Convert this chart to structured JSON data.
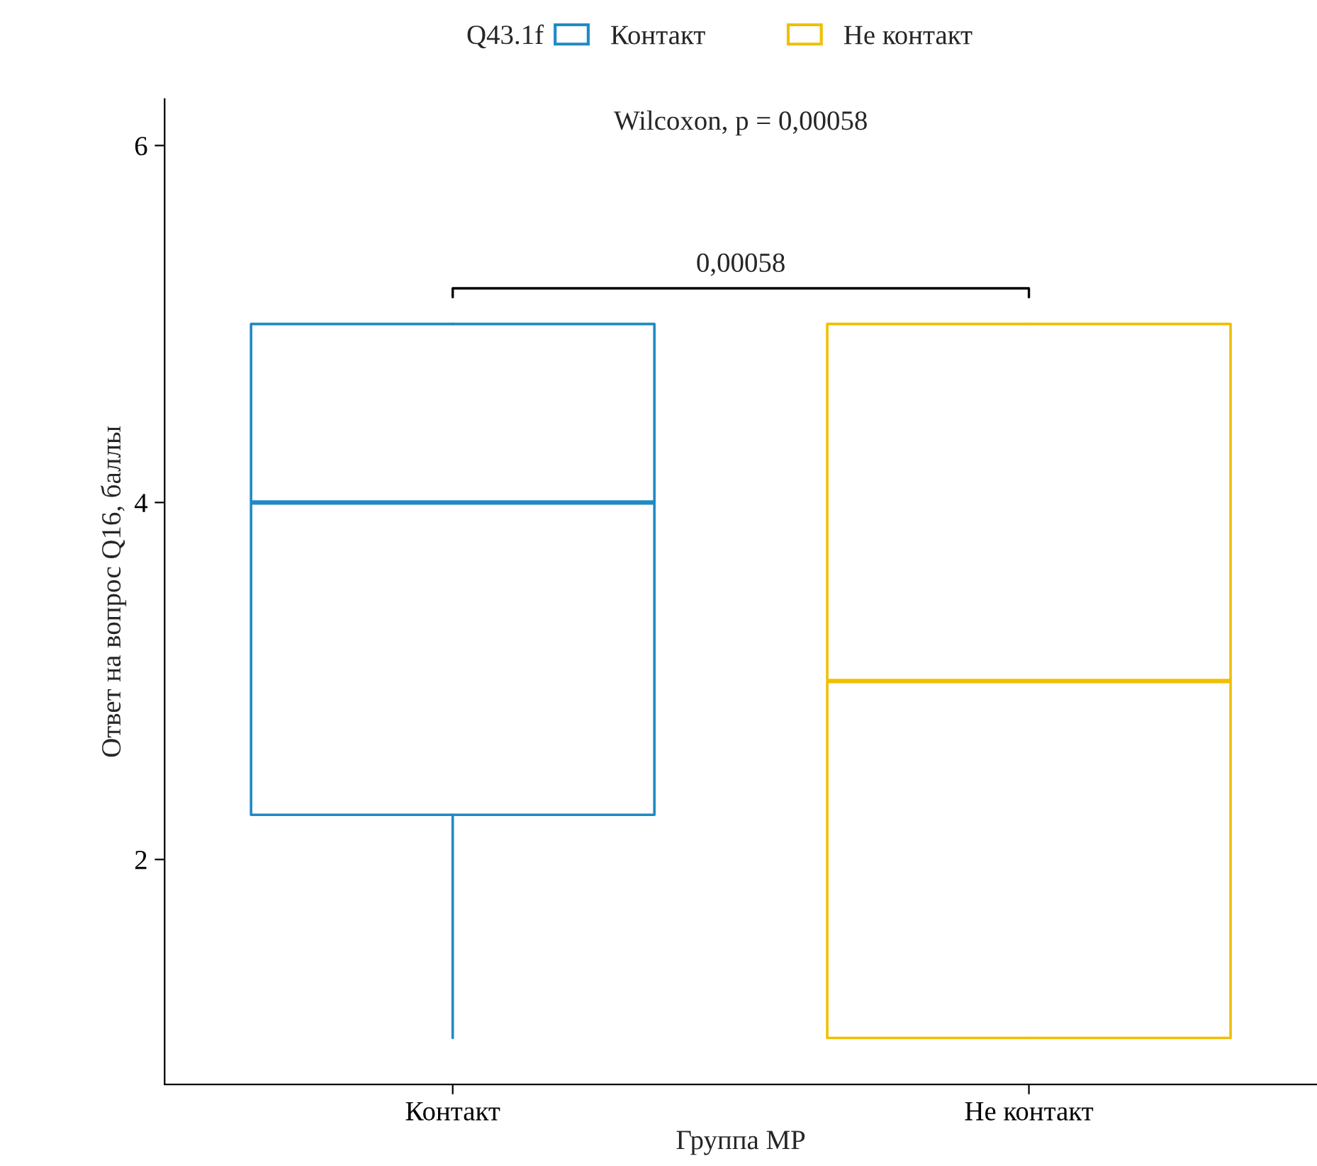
{
  "chart_data": {
    "type": "box",
    "title": "Wilcoxon, p = 0,00058",
    "xlabel": "Группа МР",
    "ylabel": "Ответ на вопрос Q16, баллы",
    "legend_title": "Q43.1f",
    "legend": "top",
    "grid": false,
    "categories": [
      "Контакт",
      "Не контакт"
    ],
    "series": [
      {
        "name": "Контакт",
        "color": "#1f8ac4",
        "boxes": [
          {
            "low": 1,
            "q1": 2.25,
            "median": 4,
            "q3": 5,
            "high": 5
          },
          null
        ]
      },
      {
        "name": "Не контакт",
        "color": "#efc000",
        "boxes": [
          null,
          {
            "low": 1,
            "q1": 1,
            "median": 3,
            "q3": 5,
            "high": 5
          }
        ]
      }
    ],
    "ylim": [
      0.74,
      6.26
    ],
    "yticks": [
      2,
      4,
      6
    ],
    "annotations": [
      "0,00058"
    ]
  }
}
